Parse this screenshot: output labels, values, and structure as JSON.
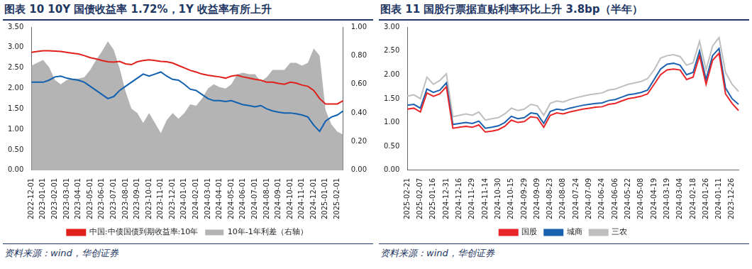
{
  "chart_data": [
    {
      "type": "line",
      "title": "图表 10 10Y 国债收益率 1.72%，1Y 收益率有所上升",
      "source": "资料来源：wind，华创证券",
      "categories": [
        "2022-12-01",
        null,
        "2023-01-01",
        null,
        "2023-02-01",
        null,
        "2023-03-01",
        null,
        "2023-04-01",
        null,
        "2023-05-01",
        null,
        "2023-06-01",
        null,
        "2023-07-01",
        null,
        "2023-08-01",
        null,
        "2023-09-01",
        null,
        "2023-10-01",
        null,
        "2023-11-01",
        null,
        "2023-12-01",
        null,
        "2024-01-01",
        null,
        "2024-02-01",
        null,
        "2024-03-01",
        null,
        "2024-04-01",
        null,
        "2024-05-01",
        null,
        "2024-06-01",
        null,
        "2024-07-01",
        null,
        "2024-08-01",
        null,
        "2024-09-01",
        null,
        "2024-10-01",
        null,
        "2024-11-01",
        null,
        "2024-12-01",
        null,
        "2025-01-01",
        null,
        "2025-02-01",
        null
      ],
      "series": [
        {
          "name": "10年-1年利差（右轴）",
          "type": "area",
          "axis": "y2",
          "color": "#b4b4b4",
          "values": [
            0.73,
            0.75,
            0.77,
            0.72,
            0.63,
            0.6,
            0.63,
            0.64,
            0.64,
            0.65,
            0.7,
            0.77,
            0.83,
            0.9,
            0.84,
            0.71,
            0.55,
            0.43,
            0.4,
            0.33,
            0.4,
            0.33,
            0.26,
            0.35,
            0.4,
            0.36,
            0.4,
            0.46,
            0.45,
            0.5,
            0.57,
            0.6,
            0.58,
            0.57,
            0.6,
            0.67,
            0.68,
            0.67,
            0.67,
            0.62,
            0.65,
            0.7,
            0.7,
            0.7,
            0.75,
            0.75,
            0.73,
            0.75,
            0.85,
            0.8,
            0.42,
            0.32,
            0.27,
            0.25
          ]
        },
        {
          "type": "line",
          "color": "#1060b0",
          "values": [
            2.15,
            2.15,
            2.15,
            2.2,
            2.28,
            2.3,
            2.25,
            2.22,
            2.2,
            2.15,
            2.05,
            1.95,
            1.85,
            1.75,
            1.8,
            1.95,
            2.05,
            2.15,
            2.25,
            2.35,
            2.3,
            2.35,
            2.4,
            2.3,
            2.22,
            2.2,
            2.1,
            1.98,
            1.95,
            1.85,
            1.75,
            1.7,
            1.7,
            1.68,
            1.7,
            1.65,
            1.6,
            1.58,
            1.55,
            1.58,
            1.5,
            1.45,
            1.42,
            1.4,
            1.4,
            1.38,
            1.35,
            1.3,
            1.1,
            0.95,
            1.2,
            1.3,
            1.35,
            1.45
          ]
        },
        {
          "name": "中国:中债国债到期收益率:10年",
          "type": "line",
          "color": "#e0201b",
          "values": [
            2.88,
            2.9,
            2.92,
            2.92,
            2.91,
            2.9,
            2.88,
            2.86,
            2.84,
            2.8,
            2.75,
            2.72,
            2.68,
            2.65,
            2.64,
            2.66,
            2.6,
            2.58,
            2.65,
            2.68,
            2.7,
            2.68,
            2.66,
            2.65,
            2.62,
            2.56,
            2.5,
            2.44,
            2.4,
            2.35,
            2.32,
            2.3,
            2.28,
            2.25,
            2.3,
            2.32,
            2.28,
            2.25,
            2.22,
            2.2,
            2.15,
            2.15,
            2.12,
            2.1,
            2.15,
            2.13,
            2.08,
            2.05,
            1.95,
            1.75,
            1.62,
            1.62,
            1.62,
            1.7
          ]
        }
      ],
      "ylim": [
        0,
        3.5
      ],
      "yticks": [
        {
          "value": 0,
          "label": "0.00"
        },
        {
          "value": 0.5,
          "label": "0.50"
        },
        {
          "value": 1,
          "label": "1.00"
        },
        {
          "value": 1.5,
          "label": "1.50"
        },
        {
          "value": 2,
          "label": "2.00"
        },
        {
          "value": 2.5,
          "label": "2.50"
        },
        {
          "value": 3,
          "label": "3.00"
        },
        {
          "value": 3.5,
          "label": "3.50"
        }
      ],
      "y2lim": [
        0,
        1
      ],
      "y2ticks": [
        {
          "value": 0,
          "label": "0.00"
        },
        {
          "value": 0.2,
          "label": "0.20"
        },
        {
          "value": 0.4,
          "label": "0.40"
        },
        {
          "value": 0.6,
          "label": "0.60"
        },
        {
          "value": 0.8,
          "label": "0.80"
        },
        {
          "value": 1,
          "label": "1.00"
        }
      ],
      "grid": false,
      "legend": "bottom"
    },
    {
      "type": "line",
      "title": "图表 11 国股行票据直贴利率环比上升 3.8bp（半年）",
      "source": "资料来源：wind，华创证券",
      "categories": [
        "2025-02-21",
        null,
        "2025-02-07",
        null,
        "2025-01-16",
        null,
        "2024-12-31",
        null,
        "2024-12-16",
        null,
        "2024-11-29",
        null,
        "2024-11-14",
        null,
        "2024-10-30",
        null,
        "2024-10-15",
        null,
        "2024-09-29",
        null,
        "2024-09-09",
        null,
        "2024-08-23",
        null,
        "2024-08-08",
        null,
        "2024-07-24",
        null,
        "2024-07-09",
        null,
        "2024-06-24",
        null,
        "2024-06-06",
        null,
        "2024-05-22",
        null,
        "2024-05-08",
        null,
        "2024-04-19",
        null,
        "2024-03-19",
        null,
        "2024-03-04",
        null,
        "2024-02-18",
        null,
        "2024-01-26",
        null,
        "2024-01-11",
        null,
        "2023-12-26",
        null
      ],
      "series": [
        {
          "name": "国股",
          "color": "#e8262a",
          "values": [
            1.28,
            1.3,
            1.22,
            1.62,
            1.55,
            1.6,
            1.75,
            0.88,
            0.9,
            0.92,
            0.9,
            0.95,
            0.8,
            0.82,
            0.85,
            0.92,
            1.05,
            1.0,
            1.02,
            1.12,
            1.1,
            0.9,
            1.15,
            1.2,
            1.18,
            1.22,
            1.25,
            1.28,
            1.3,
            1.32,
            1.33,
            1.38,
            1.4,
            1.45,
            1.5,
            1.52,
            1.55,
            1.6,
            1.8,
            2.0,
            2.1,
            2.12,
            2.1,
            1.9,
            1.95,
            2.4,
            1.8,
            2.3,
            2.45,
            1.6,
            1.4,
            1.25
          ]
        },
        {
          "name": "城商",
          "color": "#1a62b0",
          "values": [
            1.36,
            1.38,
            1.3,
            1.7,
            1.63,
            1.68,
            1.83,
            0.96,
            0.98,
            1.0,
            0.98,
            1.03,
            0.88,
            0.9,
            0.93,
            1.0,
            1.13,
            1.08,
            1.1,
            1.2,
            1.18,
            0.98,
            1.23,
            1.28,
            1.26,
            1.3,
            1.33,
            1.36,
            1.38,
            1.4,
            1.41,
            1.46,
            1.48,
            1.53,
            1.58,
            1.6,
            1.63,
            1.68,
            1.9,
            2.12,
            2.22,
            2.24,
            2.2,
            2.0,
            2.05,
            2.5,
            1.9,
            2.4,
            2.55,
            1.72,
            1.5,
            1.38
          ]
        },
        {
          "name": "三农",
          "color": "#bfbfbf",
          "values": [
            1.55,
            1.58,
            1.5,
            1.95,
            1.8,
            1.88,
            2.02,
            1.12,
            1.15,
            1.18,
            1.15,
            1.22,
            1.05,
            1.08,
            1.1,
            1.18,
            1.3,
            1.25,
            1.28,
            1.38,
            1.35,
            1.15,
            1.4,
            1.45,
            1.43,
            1.48,
            1.52,
            1.55,
            1.58,
            1.6,
            1.62,
            1.68,
            1.7,
            1.75,
            1.8,
            1.83,
            1.86,
            1.92,
            2.1,
            2.35,
            2.4,
            2.42,
            2.38,
            2.2,
            2.25,
            2.7,
            2.1,
            2.6,
            2.78,
            2.05,
            1.8,
            1.65
          ]
        }
      ],
      "ylim": [
        0,
        3
      ],
      "yticks": [
        {
          "value": 0,
          "label": "0.00"
        },
        {
          "value": 0.5,
          "label": "0.50"
        },
        {
          "value": 1,
          "label": "1.00"
        },
        {
          "value": 1.5,
          "label": "1.50"
        },
        {
          "value": 2,
          "label": "2.00"
        },
        {
          "value": 2.5,
          "label": "2.50"
        },
        {
          "value": 3,
          "label": "3.00"
        }
      ],
      "grid": false,
      "legend": "bottom"
    }
  ]
}
